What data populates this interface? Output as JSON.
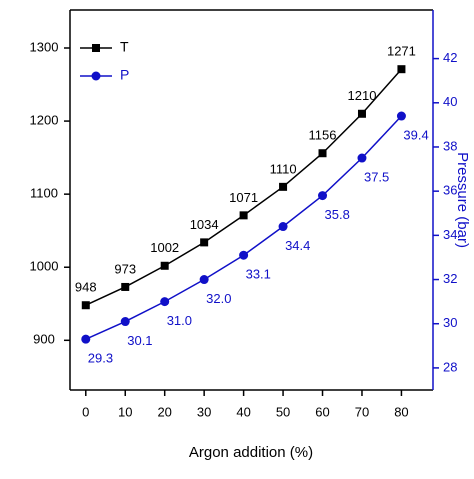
{
  "chart_data": {
    "type": "line",
    "x_label": "Argon addition (%)",
    "y2_label": "Pressure (bar)",
    "x": [
      0,
      10,
      20,
      30,
      40,
      50,
      60,
      70,
      80
    ],
    "xlim": [
      -4,
      88
    ],
    "xticks": [
      0,
      10,
      20,
      30,
      40,
      50,
      60,
      70,
      80
    ],
    "ylim": [
      832,
      1352
    ],
    "yticks": [
      900,
      1000,
      1100,
      1200,
      1300
    ],
    "y2lim": [
      27,
      44.2
    ],
    "y2ticks": [
      28,
      30,
      32,
      34,
      36,
      38,
      40,
      42
    ],
    "legend": "upper left",
    "series": [
      {
        "name": "T",
        "color": "#000000",
        "marker": "square",
        "values": [
          948,
          973,
          1002,
          1034,
          1071,
          1110,
          1156,
          1210,
          1271
        ]
      },
      {
        "name": "P",
        "color": "#1010c8",
        "marker": "circle",
        "axis": "y2",
        "values": [
          29.3,
          30.1,
          31.0,
          32.0,
          33.1,
          34.4,
          35.8,
          37.5,
          39.4
        ],
        "value_labels": [
          "29.3",
          "30.1",
          "31.0",
          "32.0",
          "33.1",
          "34.4",
          "35.8",
          "37.5",
          "39.4"
        ]
      }
    ]
  }
}
